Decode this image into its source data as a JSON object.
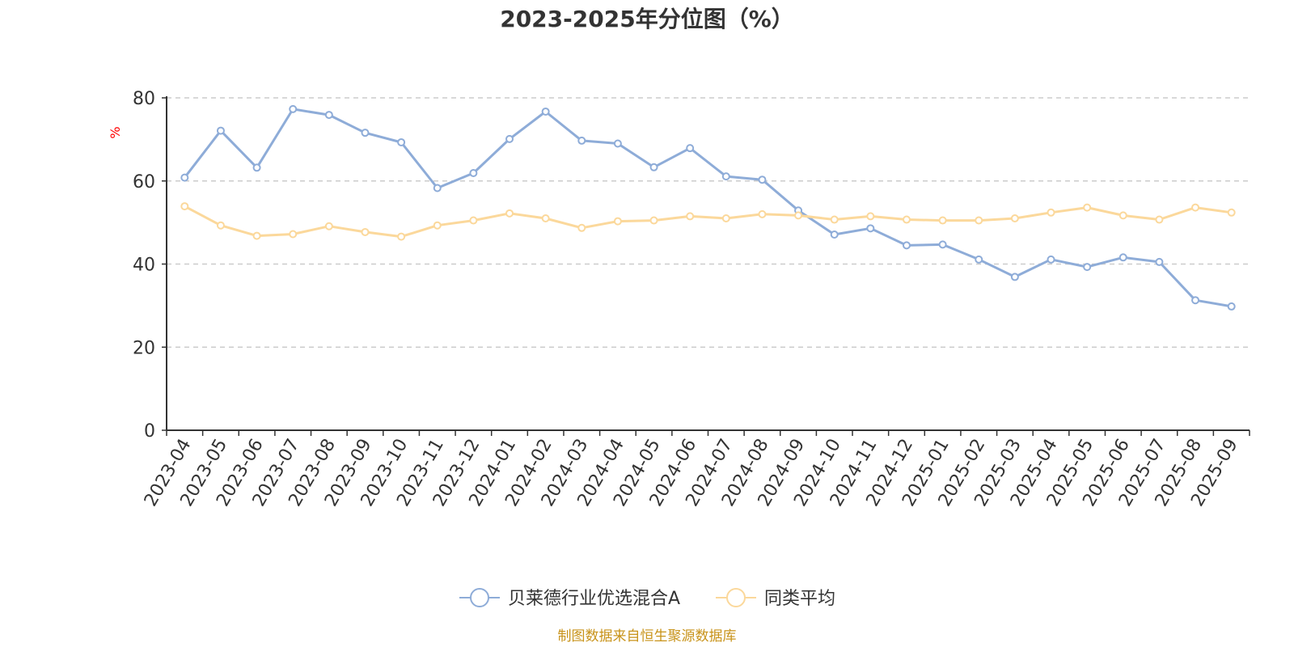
{
  "colors": {
    "series_main": "#8eacd8",
    "series_avg": "#fbd89b",
    "axis": "#333333",
    "grid": "#cccccc",
    "unit": "#ff0000",
    "footer": "#c8931a",
    "title": "#333333"
  },
  "chart_data": {
    "type": "line",
    "title": "2023-2025年分位图（%）",
    "ylabel": "%",
    "xlabel": "",
    "ylim": [
      0,
      80
    ],
    "yticks": [
      0,
      20,
      40,
      60,
      80
    ],
    "grid": true,
    "legend_position": "bottom-center",
    "categories": [
      "2023-04",
      "2023-05",
      "2023-06",
      "2023-07",
      "2023-08",
      "2023-09",
      "2023-10",
      "2023-11",
      "2023-12",
      "2024-01",
      "2024-02",
      "2024-03",
      "2024-04",
      "2024-05",
      "2024-06",
      "2024-07",
      "2024-08",
      "2024-09",
      "2024-10",
      "2024-11",
      "2024-12",
      "2025-01",
      "2025-02",
      "2025-03",
      "2025-04",
      "2025-05",
      "2025-06",
      "2025-07",
      "2025-08",
      "2025-09"
    ],
    "series": [
      {
        "name": "贝莱德行业优选混合A",
        "color_key": "series_main",
        "values": [
          60.8,
          72.1,
          63.2,
          77.3,
          75.9,
          71.6,
          69.3,
          58.3,
          61.9,
          70.1,
          76.7,
          69.7,
          69.0,
          63.3,
          67.9,
          61.1,
          60.3,
          52.9,
          47.1,
          48.6,
          44.5,
          44.7,
          41.1,
          36.9,
          41.1,
          39.3,
          41.6,
          40.5,
          31.3,
          29.8
        ]
      },
      {
        "name": "同类平均",
        "color_key": "series_avg",
        "values": [
          53.9,
          49.3,
          46.8,
          47.2,
          49.1,
          47.7,
          46.6,
          49.3,
          50.5,
          52.2,
          51.0,
          48.7,
          50.3,
          50.5,
          51.5,
          51.0,
          52.0,
          51.7,
          50.7,
          51.5,
          50.7,
          50.5,
          50.5,
          51.0,
          52.4,
          53.6,
          51.7,
          50.7,
          53.6,
          52.4
        ]
      }
    ],
    "footer": "制图数据来自恒生聚源数据库"
  }
}
